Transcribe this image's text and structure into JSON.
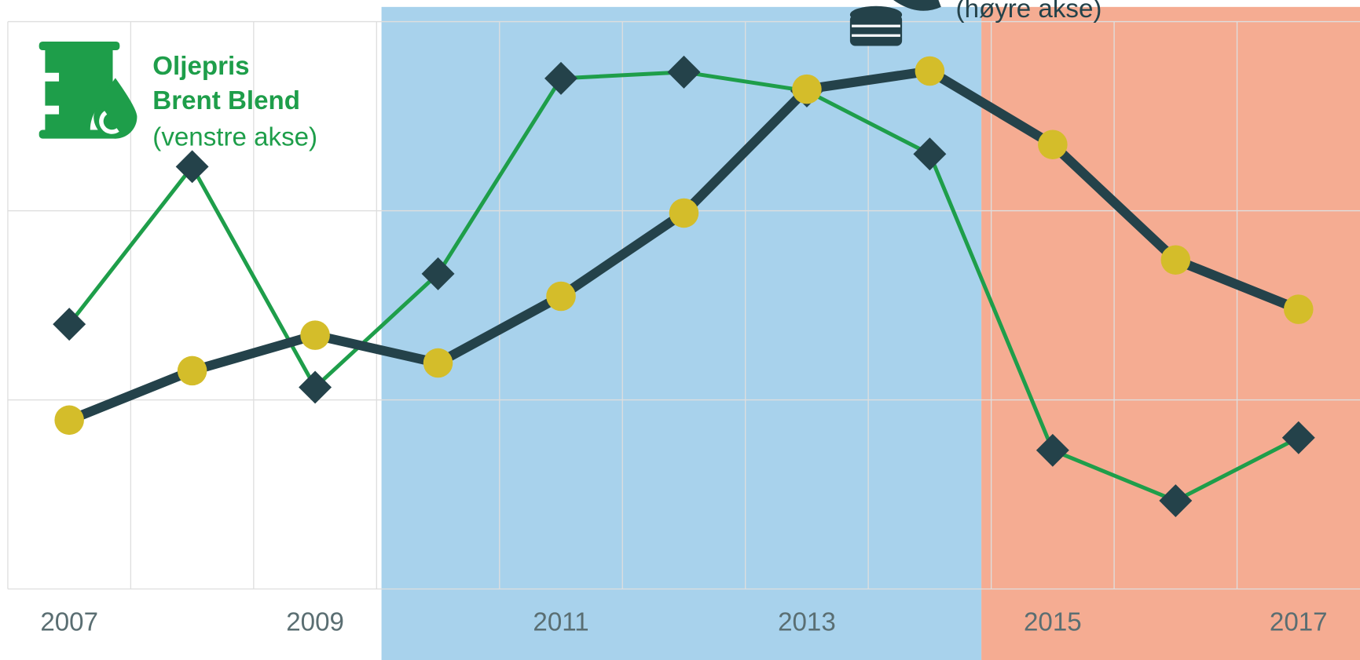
{
  "chart_data": {
    "type": "line",
    "x": [
      2007,
      2008,
      2009,
      2010,
      2011,
      2012,
      2013,
      2014,
      2015,
      2016,
      2017
    ],
    "xlim": [
      2006.5,
      2017.5
    ],
    "xticks": [
      2007,
      2009,
      2011,
      2013,
      2015,
      2017
    ],
    "ylim": [
      30,
      120
    ],
    "yticks": [
      30,
      60,
      90,
      120
    ],
    "y2lim": [
      0,
      300
    ],
    "grid": true,
    "spans": [
      {
        "from": 2009.54,
        "to": 2014.42,
        "color": "#a8d2ec"
      },
      {
        "from": 2014.42,
        "to": 2017.5,
        "color": "#f5ac92"
      }
    ],
    "legend_left": [
      "Oljepris",
      "Brent Blend",
      "(venstre akse)"
    ],
    "legend_right": [
      "(høyre akse)"
    ],
    "series": [
      {
        "color": "#1e9e4a",
        "marker_color": "#24424a",
        "marker": "diamond",
        "values": [
          72,
          97,
          62,
          80,
          111,
          112,
          109,
          99,
          52,
          44,
          54
        ]
      },
      {
        "color": "#24424a",
        "marker_color": "#d4bd2a",
        "marker": "circle",
        "axis": "y2",
        "values": [
          89.3,
          115.4,
          134.2,
          119.5,
          154.8,
          198.8,
          264.3,
          273.9,
          235,
          174,
          147.9
        ]
      }
    ]
  }
}
